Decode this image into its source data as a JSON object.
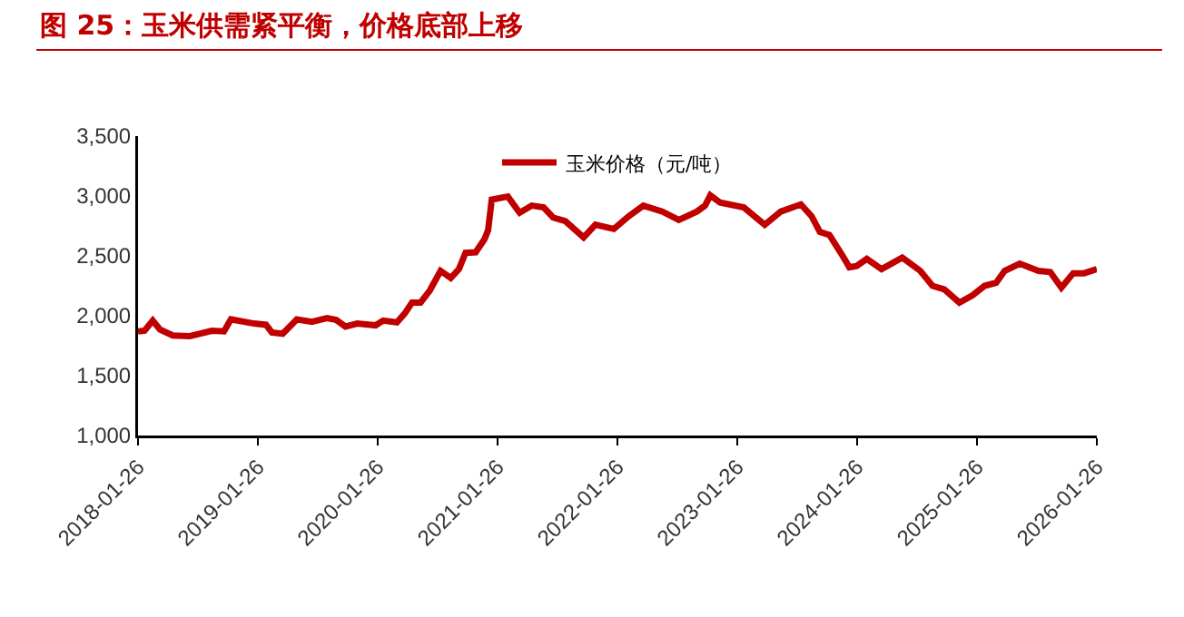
{
  "chart_data": {
    "type": "line",
    "title": "图 25：玉米供需紧平衡，价格底部上移",
    "x": [
      "2018-01-26",
      "2018-02-15",
      "2018-03-12",
      "2018-04-03",
      "2018-05-12",
      "2018-07-03",
      "2018-09-08",
      "2018-10-15",
      "2018-11-05",
      "2019-01-15",
      "2019-02-20",
      "2019-03-10",
      "2019-04-12",
      "2019-05-25",
      "2019-07-10",
      "2019-08-25",
      "2019-09-22",
      "2019-10-20",
      "2019-11-25",
      "2020-01-20",
      "2020-02-12",
      "2020-03-25",
      "2020-04-18",
      "2020-05-10",
      "2020-06-05",
      "2020-07-03",
      "2020-08-05",
      "2020-09-05",
      "2020-09-30",
      "2020-10-20",
      "2020-11-20",
      "2020-12-17",
      "2020-12-28",
      "2021-01-08",
      "2021-02-26",
      "2021-04-03",
      "2021-05-10",
      "2021-06-15",
      "2021-07-14",
      "2021-08-20",
      "2021-10-15",
      "2021-11-20",
      "2022-01-15",
      "2022-03-01",
      "2022-04-15",
      "2022-06-12",
      "2022-08-01",
      "2022-09-25",
      "2022-10-20",
      "2022-11-05",
      "2022-12-05",
      "2023-02-15",
      "2023-04-20",
      "2023-06-08",
      "2023-08-08",
      "2023-09-10",
      "2023-10-05",
      "2023-11-03",
      "2023-12-10",
      "2024-01-03",
      "2024-01-25",
      "2024-02-25",
      "2024-04-10",
      "2024-06-12",
      "2024-08-06",
      "2024-09-12",
      "2024-10-18",
      "2024-12-03",
      "2025-01-12",
      "2025-02-18",
      "2025-03-25",
      "2025-04-20",
      "2025-06-05",
      "2025-08-01",
      "2025-09-06",
      "2025-10-10",
      "2025-11-15",
      "2025-12-18",
      "2026-01-26"
    ],
    "series": [
      {
        "name": "玉米价格（元/吨）",
        "color": "#c00000",
        "values": [
          1870,
          1875,
          1960,
          1885,
          1835,
          1830,
          1875,
          1870,
          1970,
          1935,
          1925,
          1860,
          1850,
          1970,
          1950,
          1980,
          1965,
          1910,
          1935,
          1920,
          1960,
          1945,
          2020,
          2110,
          2110,
          2210,
          2375,
          2315,
          2390,
          2525,
          2530,
          2640,
          2715,
          2970,
          2995,
          2860,
          2920,
          2905,
          2820,
          2790,
          2655,
          2760,
          2725,
          2830,
          2920,
          2870,
          2800,
          2870,
          2920,
          3005,
          2945,
          2905,
          2760,
          2870,
          2930,
          2830,
          2700,
          2675,
          2515,
          2405,
          2415,
          2475,
          2390,
          2485,
          2375,
          2250,
          2220,
          2110,
          2170,
          2250,
          2275,
          2375,
          2435,
          2375,
          2365,
          2235,
          2355,
          2355,
          2390
        ]
      }
    ],
    "xlim": [
      "2018-01-26",
      "2026-01-26"
    ],
    "xticks": [
      "2018-01-26",
      "2019-01-26",
      "2020-01-26",
      "2021-01-26",
      "2022-01-26",
      "2023-01-26",
      "2024-01-26",
      "2025-01-26",
      "2026-01-26"
    ],
    "ylim": [
      1000,
      3500
    ],
    "yticks": [
      {
        "value": 1000,
        "label": "1,000"
      },
      {
        "value": 1500,
        "label": "1,500"
      },
      {
        "value": 2000,
        "label": "2,000"
      },
      {
        "value": 2500,
        "label": "2,500"
      },
      {
        "value": 3000,
        "label": "3,000"
      },
      {
        "value": 3500,
        "label": "3,500"
      }
    ],
    "grid": false,
    "legend": "top",
    "marker": "none",
    "line_style": "solid"
  }
}
